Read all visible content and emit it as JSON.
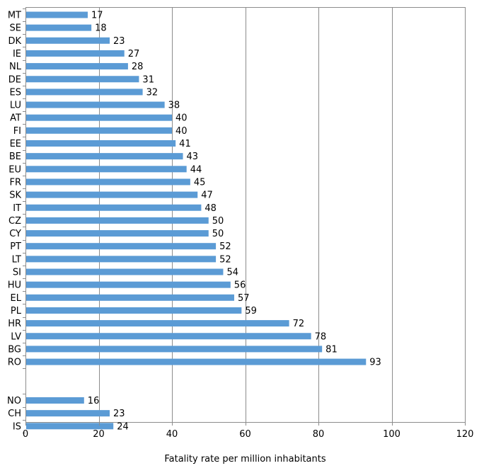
{
  "chart_data": {
    "type": "bar",
    "orientation": "horizontal",
    "xlabel": "Fatality rate per million inhabitants",
    "xlim": [
      0,
      120
    ],
    "xticks": [
      "0",
      "20",
      "40",
      "60",
      "80",
      "100",
      "120"
    ],
    "grid": "vertical",
    "bar_color": "#5b9bd5",
    "groups": [
      {
        "categories": [
          "MT",
          "SE",
          "DK",
          "IE",
          "NL",
          "DE",
          "ES",
          "LU",
          "AT",
          "FI",
          "EE",
          "BE",
          "EU",
          "FR",
          "SK",
          "IT",
          "CZ",
          "CY",
          "PT",
          "LT",
          "SI",
          "HU",
          "EL",
          "PL",
          "HR",
          "LV",
          "BG",
          "RO"
        ],
        "values": [
          17,
          18,
          23,
          27,
          28,
          31,
          32,
          38,
          40,
          40,
          41,
          43,
          44,
          45,
          47,
          48,
          50,
          50,
          52,
          52,
          54,
          56,
          57,
          59,
          72,
          78,
          81,
          93
        ]
      },
      {
        "categories": [
          "NO",
          "CH",
          "IS"
        ],
        "values": [
          16,
          23,
          24
        ]
      }
    ]
  }
}
